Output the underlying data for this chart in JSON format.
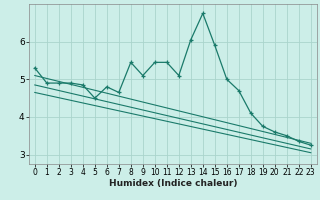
{
  "xlabel": "Humidex (Indice chaleur)",
  "bg_color": "#cceee8",
  "grid_color": "#aad4cc",
  "line_color": "#1a7a6a",
  "xlim": [
    -0.5,
    23.5
  ],
  "ylim": [
    2.75,
    7.0
  ],
  "yticks": [
    3,
    4,
    5,
    6
  ],
  "xticks": [
    0,
    1,
    2,
    3,
    4,
    5,
    6,
    7,
    8,
    9,
    10,
    11,
    12,
    13,
    14,
    15,
    16,
    17,
    18,
    19,
    20,
    21,
    22,
    23
  ],
  "series1_x": [
    0,
    1,
    2,
    3,
    4,
    5,
    6,
    7,
    8,
    9,
    10,
    11,
    12,
    13,
    14,
    15,
    16,
    17,
    18,
    19,
    20,
    21,
    22,
    23
  ],
  "series1_y": [
    5.3,
    4.9,
    4.9,
    4.9,
    4.85,
    4.5,
    4.8,
    4.65,
    5.45,
    5.1,
    5.45,
    5.45,
    5.1,
    6.05,
    6.75,
    5.9,
    5.0,
    4.7,
    4.1,
    3.75,
    3.6,
    3.5,
    3.35,
    3.25
  ],
  "series2_x": [
    0,
    23
  ],
  "series2_y": [
    5.1,
    3.3
  ],
  "series3_x": [
    0,
    23
  ],
  "series3_y": [
    4.85,
    3.15
  ],
  "series4_x": [
    0,
    23
  ],
  "series4_y": [
    4.65,
    3.05
  ]
}
